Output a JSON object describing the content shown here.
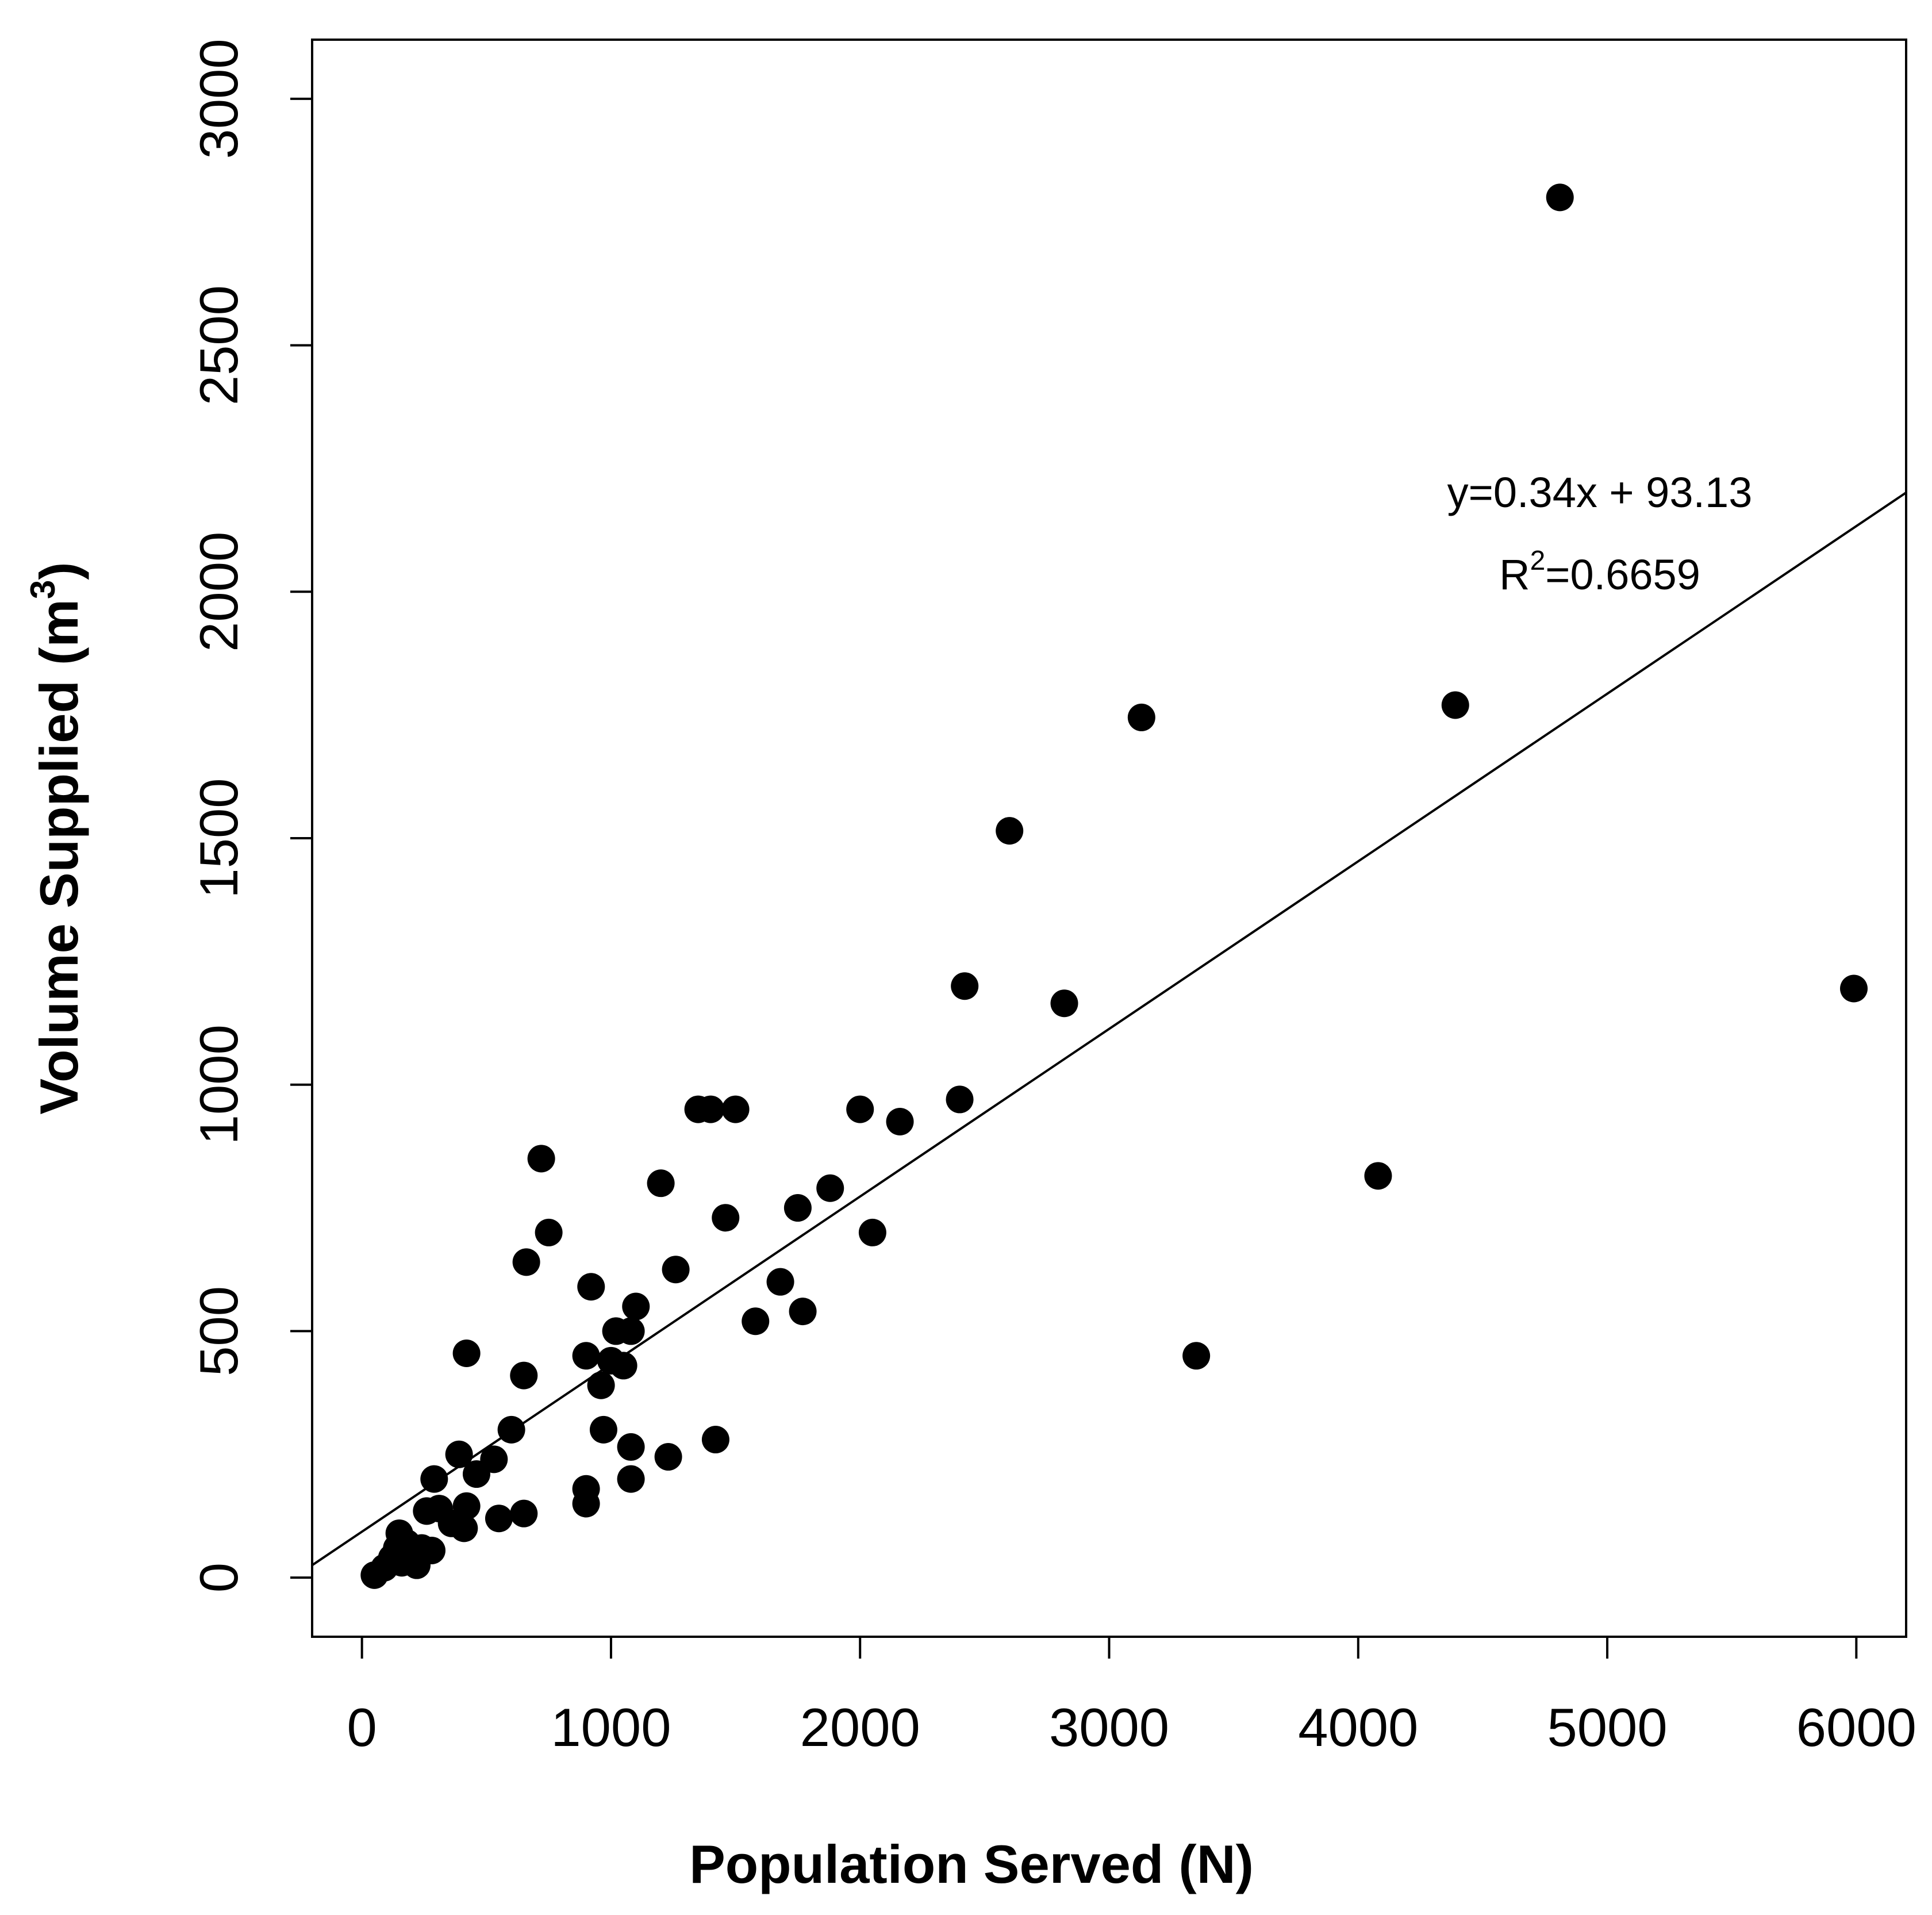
{
  "chart_data": {
    "type": "scatter",
    "title": "",
    "xlabel": "Population Served (N)",
    "ylabel": {
      "main": "Volume Supplied (m",
      "sup": "3",
      "close": ")"
    },
    "xlim": [
      -200,
      6200
    ],
    "ylim": [
      -120,
      3120
    ],
    "xticks": [
      0,
      1000,
      2000,
      3000,
      4000,
      5000,
      6000
    ],
    "yticks": [
      0,
      500,
      1000,
      1500,
      2000,
      2500,
      3000
    ],
    "xtick_labels": [
      "0",
      "1000",
      "2000",
      "3000",
      "4000",
      "5000",
      "6000"
    ],
    "ytick_labels": [
      "0",
      "500",
      "1000",
      "1500",
      "2000",
      "2500",
      "3000"
    ],
    "fit_line": {
      "slope": 0.34,
      "intercept": 93.13
    },
    "equation": "y=0.34x + 93.13",
    "r2": {
      "prefix": "R",
      "sup": "2",
      "value": "=0.6659"
    },
    "marker_color": "#000000",
    "points": [
      [
        50,
        5
      ],
      [
        90,
        20
      ],
      [
        120,
        40
      ],
      [
        140,
        60
      ],
      [
        150,
        90
      ],
      [
        160,
        30
      ],
      [
        180,
        70
      ],
      [
        200,
        45
      ],
      [
        220,
        25
      ],
      [
        240,
        60
      ],
      [
        260,
        135
      ],
      [
        280,
        55
      ],
      [
        290,
        200
      ],
      [
        310,
        140
      ],
      [
        360,
        110
      ],
      [
        390,
        250
      ],
      [
        410,
        100
      ],
      [
        420,
        145
      ],
      [
        420,
        455
      ],
      [
        460,
        210
      ],
      [
        530,
        240
      ],
      [
        550,
        120
      ],
      [
        600,
        300
      ],
      [
        650,
        130
      ],
      [
        650,
        410
      ],
      [
        660,
        640
      ],
      [
        720,
        850
      ],
      [
        750,
        700
      ],
      [
        900,
        150
      ],
      [
        900,
        180
      ],
      [
        900,
        450
      ],
      [
        920,
        590
      ],
      [
        960,
        390
      ],
      [
        970,
        300
      ],
      [
        1000,
        440
      ],
      [
        1020,
        500
      ],
      [
        1050,
        430
      ],
      [
        1080,
        500
      ],
      [
        1080,
        265
      ],
      [
        1080,
        200
      ],
      [
        1100,
        550
      ],
      [
        1200,
        800
      ],
      [
        1230,
        245
      ],
      [
        1260,
        625
      ],
      [
        1350,
        950
      ],
      [
        1400,
        950
      ],
      [
        1420,
        280
      ],
      [
        1460,
        730
      ],
      [
        1500,
        950
      ],
      [
        1580,
        520
      ],
      [
        1680,
        600
      ],
      [
        1750,
        750
      ],
      [
        1770,
        540
      ],
      [
        1880,
        790
      ],
      [
        2000,
        950
      ],
      [
        2050,
        700
      ],
      [
        2160,
        925
      ],
      [
        2400,
        970
      ],
      [
        2420,
        1200
      ],
      [
        2600,
        1515
      ],
      [
        2820,
        1165
      ],
      [
        3130,
        1745
      ],
      [
        3350,
        450
      ],
      [
        4080,
        815
      ],
      [
        4390,
        1770
      ],
      [
        4810,
        2800
      ],
      [
        5990,
        1195
      ]
    ]
  }
}
